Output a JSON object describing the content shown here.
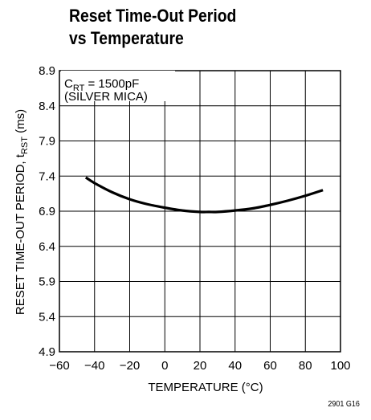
{
  "chart_data": {
    "type": "line",
    "title_lines": [
      "Reset Time-Out Period",
      "vs Temperature"
    ],
    "xlabel": "TEMPERATURE (°C)",
    "ylabel_main": "RESET TIME-OUT PERIOD, t",
    "ylabel_sub": "RST",
    "ylabel_unit": " (ms)",
    "xlim": [
      -60,
      100
    ],
    "ylim": [
      4.9,
      8.9
    ],
    "xticks": [
      "−60",
      "−40",
      "−20",
      "0",
      "20",
      "40",
      "60",
      "80",
      "100"
    ],
    "xtick_values": [
      -60,
      -40,
      -20,
      0,
      20,
      40,
      60,
      80,
      100
    ],
    "yticks": [
      "4.9",
      "5.4",
      "5.9",
      "6.4",
      "6.9",
      "7.4",
      "7.9",
      "8.4",
      "8.9"
    ],
    "ytick_values": [
      4.9,
      5.4,
      5.9,
      6.4,
      6.9,
      7.4,
      7.9,
      8.4,
      8.9
    ],
    "grid": true,
    "annotation": {
      "prefix": "C",
      "sub": "RT",
      "suffix": " = 1500pF",
      "line2": "(SILVER MICA)"
    },
    "series": [
      {
        "x": [
          -45,
          -40,
          -30,
          -20,
          -10,
          0,
          10,
          20,
          25,
          30,
          40,
          50,
          60,
          70,
          80,
          90
        ],
        "values": [
          7.38,
          7.3,
          7.17,
          7.07,
          7.0,
          6.95,
          6.91,
          6.89,
          6.89,
          6.89,
          6.91,
          6.94,
          6.99,
          7.05,
          7.12,
          7.2
        ]
      }
    ]
  },
  "figure_id": "2901 G16"
}
